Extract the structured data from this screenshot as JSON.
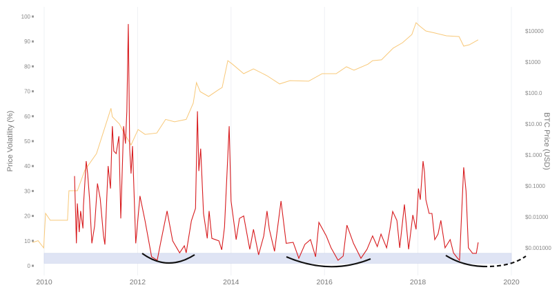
{
  "chart_data": {
    "type": "line",
    "ylabel": "Price Volatility (%)",
    "y2label": "BTC Price (USD)",
    "xlim": [
      2010,
      2020
    ],
    "ylim": [
      0,
      100
    ],
    "y2lim": [
      0.001,
      10000
    ],
    "y2scale": "log",
    "grid": "vertical lines at even years",
    "x_ticks": [
      "2010",
      "2012",
      "2014",
      "2016",
      "2018",
      "2020"
    ],
    "y_ticks": [
      "0",
      "10",
      "20",
      "30",
      "40",
      "50",
      "60",
      "70",
      "80",
      "90",
      "100"
    ],
    "y2_ticks": [
      "$0.001000",
      "$0.01000",
      "$0.1000",
      "$1.000",
      "$10.00",
      "$100.0",
      "$1000",
      "$10000"
    ],
    "colors": {
      "volatility": "#d7191c",
      "price": "#f8c878",
      "band": "#dfe4f4",
      "annotation": "#111111"
    },
    "band": {
      "x": [
        2010,
        2020
      ],
      "y": [
        1,
        5
      ]
    },
    "series": [
      {
        "axis": "left",
        "x": [
          2010.65,
          2010.69,
          2010.71,
          2010.75,
          2010.78,
          2010.83,
          2010.84,
          2010.9,
          2010.93,
          2010.97,
          2011.02,
          2011.08,
          2011.14,
          2011.2,
          2011.27,
          2011.3,
          2011.34,
          2011.37,
          2011.42,
          2011.46,
          2011.49,
          2011.54,
          2011.6,
          2011.64,
          2011.7,
          2011.74,
          2011.77,
          2011.8,
          2011.82,
          2011.83,
          2011.86,
          2011.89,
          2011.96,
          2012.05,
          2012.16,
          2012.3,
          2012.42,
          2012.5,
          2012.63,
          2012.75,
          2012.9,
          2013.0,
          2013.04,
          2013.15,
          2013.24,
          2013.28,
          2013.31,
          2013.35,
          2013.41,
          2013.49,
          2013.53,
          2013.59,
          2013.74,
          2013.8,
          2013.86,
          2013.96,
          2014.0,
          2014.11,
          2014.18,
          2014.27,
          2014.4,
          2014.48,
          2014.59,
          2014.7,
          2014.77,
          2014.82,
          2014.93,
          2015.07,
          2015.18,
          2015.33,
          2015.45,
          2015.58,
          2015.7,
          2015.81,
          2015.88,
          2016.04,
          2016.14,
          2016.29,
          2016.4,
          2016.48,
          2016.62,
          2016.78,
          2016.91,
          2017.03,
          2017.13,
          2017.21,
          2017.33,
          2017.4,
          2017.46,
          2017.55,
          2017.61,
          2017.71,
          2017.8,
          2017.89,
          2017.96,
          2018.01,
          2018.05,
          2018.11,
          2018.14,
          2018.17,
          2018.24,
          2018.3,
          2018.36,
          2018.43,
          2018.49,
          2018.58,
          2018.69,
          2018.76,
          2018.85,
          2018.89,
          2018.98,
          2019.03,
          2019.08,
          2019.17,
          2019.25,
          2019.29
        ],
        "values": [
          36,
          9,
          25,
          13.5,
          22,
          15,
          24,
          42,
          37,
          27,
          9,
          16,
          33,
          27,
          12,
          8.5,
          27,
          40,
          31,
          56,
          46,
          45,
          52,
          19,
          56,
          49,
          62,
          97,
          66,
          47,
          37,
          48,
          9,
          28,
          18,
          3.6,
          2.2,
          10,
          22,
          10,
          5.2,
          8,
          5.2,
          18,
          23,
          62,
          38,
          47,
          21,
          11,
          22,
          11,
          10,
          6.4,
          15.5,
          56,
          26,
          10.5,
          19,
          20,
          6.6,
          14.6,
          4.4,
          12,
          22,
          14.6,
          5.8,
          26,
          9,
          9.4,
          3,
          8.6,
          10.5,
          3.6,
          17.4,
          11.9,
          7.2,
          2.2,
          3.9,
          16.3,
          9,
          3,
          6.6,
          12,
          7.7,
          12.7,
          7.2,
          14.6,
          21.8,
          18.2,
          7.2,
          24.6,
          6.6,
          20.4,
          14.6,
          31,
          26.5,
          42,
          37.6,
          26.5,
          21,
          21,
          10.5,
          12.7,
          18.2,
          7.2,
          10.5,
          5.2,
          3,
          2.2,
          39.5,
          30,
          7.2,
          5,
          5,
          9.4
        ]
      },
      {
        "axis": "right",
        "x": [
          2009.75,
          2009.87,
          2009.99,
          2010.03,
          2010.13,
          2010.5,
          2010.53,
          2010.71,
          2010.87,
          2011.12,
          2011.43,
          2011.46,
          2011.61,
          2011.71,
          2011.86,
          2012.01,
          2012.16,
          2012.41,
          2012.6,
          2012.79,
          2013.04,
          2013.19,
          2013.26,
          2013.34,
          2013.52,
          2013.74,
          2013.81,
          2013.93,
          2014.03,
          2014.27,
          2014.48,
          2014.77,
          2015.04,
          2015.26,
          2015.66,
          2015.95,
          2016.25,
          2016.47,
          2016.63,
          2016.93,
          2017.03,
          2017.22,
          2017.47,
          2017.67,
          2017.87,
          2017.96,
          2018.04,
          2018.17,
          2018.36,
          2018.61,
          2018.88,
          2018.98,
          2019.1,
          2019.29
        ],
        "values": [
          0.0015,
          0.0017,
          0.001,
          0.013,
          0.0078,
          0.0078,
          0.07,
          0.07,
          0.32,
          1.1,
          32,
          17,
          10,
          5.1,
          2.1,
          6.6,
          4.6,
          5.1,
          14,
          11.7,
          14,
          47,
          215,
          110,
          77,
          130,
          150,
          1100,
          850,
          420,
          600,
          360,
          195,
          250,
          240,
          420,
          420,
          700,
          540,
          850,
          1100,
          1170,
          2800,
          4200,
          7700,
          18500,
          14300,
          10000,
          8600,
          7000,
          6600,
          3250,
          3600,
          5200
        ]
      }
    ]
  }
}
